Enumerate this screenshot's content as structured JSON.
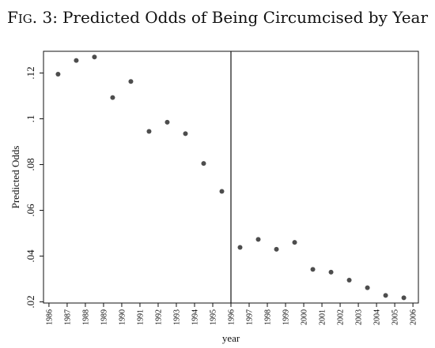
{
  "figure": {
    "title_prefix_main": "F",
    "title_prefix_small": "IG",
    "title_number": ". 3:",
    "title_rest": "Predicted Odds of Being Circumcised by Year"
  },
  "chart_data": {
    "type": "scatter",
    "xlabel": "year",
    "ylabel": "Predicted Odds",
    "x_ticks": [
      "1986",
      "1987",
      "1988",
      "1989",
      "1990",
      "1991",
      "1992",
      "1993",
      "1994",
      "1995",
      "1996",
      "1997",
      "1998",
      "1999",
      "2000",
      "2001",
      "2002",
      "2003",
      "2004",
      "2005",
      "2006"
    ],
    "y_ticks": [
      ".02",
      ".04",
      ".06",
      ".08",
      ".1",
      ".12"
    ],
    "xlim": [
      1985.7,
      2006.3
    ],
    "ylim": [
      0.0195,
      0.1295
    ],
    "grid": false,
    "vertical_line_x": 1996,
    "marker_color": "#4d4d4d",
    "points": [
      {
        "x": 1986.5,
        "y": 0.1195
      },
      {
        "x": 1987.5,
        "y": 0.1255
      },
      {
        "x": 1988.5,
        "y": 0.127
      },
      {
        "x": 1989.5,
        "y": 0.1093
      },
      {
        "x": 1990.5,
        "y": 0.1163
      },
      {
        "x": 1991.5,
        "y": 0.0945
      },
      {
        "x": 1992.5,
        "y": 0.0985
      },
      {
        "x": 1993.5,
        "y": 0.0935
      },
      {
        "x": 1994.5,
        "y": 0.0805
      },
      {
        "x": 1995.5,
        "y": 0.0683
      },
      {
        "x": 1996.5,
        "y": 0.0438
      },
      {
        "x": 1997.5,
        "y": 0.0473
      },
      {
        "x": 1998.5,
        "y": 0.043
      },
      {
        "x": 1999.5,
        "y": 0.046
      },
      {
        "x": 2000.5,
        "y": 0.0342
      },
      {
        "x": 2001.5,
        "y": 0.033
      },
      {
        "x": 2002.5,
        "y": 0.0295
      },
      {
        "x": 2003.5,
        "y": 0.0262
      },
      {
        "x": 2004.5,
        "y": 0.0228
      },
      {
        "x": 2005.5,
        "y": 0.0218
      }
    ]
  }
}
